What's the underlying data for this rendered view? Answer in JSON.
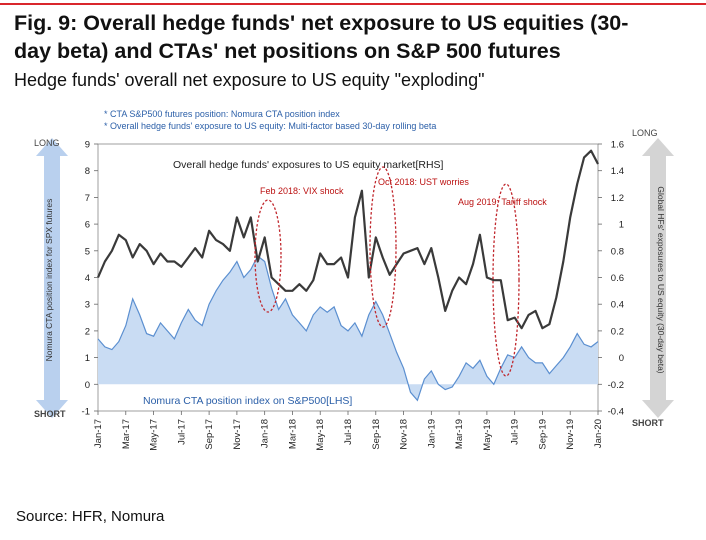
{
  "figure": {
    "title": "Fig. 9:  Overall hedge funds' net exposure to US equities (30-day beta) and CTAs' net positions on S&P 500 futures",
    "title_line1": "Fig. 9:  Overall hedge funds' net exposure to US equities (30-",
    "title_line2": "day beta) and CTAs' net positions on S&P 500 futures",
    "subtitle": "Hedge funds' overall net exposure to US equity \"exploding\"",
    "source": "Source: HFR, Nomura"
  },
  "colors": {
    "accent_red": "#d9262c",
    "area_fill": "#c9dcf3",
    "area_line": "#5b8fd0",
    "line": "#3a3a3a",
    "legend_text": "#2b5fa8",
    "annotation_red": "#c0262c"
  },
  "labels": {
    "legend1": "* CTA S&P500 futures position: Nomura CTA position index",
    "legend2": "* Overall hedge funds' exposure to US equity: Multi-factor based 30-day rolling beta",
    "line_label": "Overall hedge funds' exposures to US equity market[RHS]",
    "area_label": "Nomura CTA position index on S&P500[LHS]",
    "long_left": "LONG",
    "short_left": "SHORT",
    "long_right": "LONG",
    "short_right": "SHORT",
    "left_axis_title": "Nomura CTA position index for SPX futures",
    "right_axis_title": "Global HFs' exposures to US equity (30-day beta)",
    "ann1": "Feb 2018: VIX shock",
    "ann2": "Oct 2018: UST worries",
    "ann3": "Aug 2019: Tariff shock"
  },
  "chart_data": {
    "type": "area+line",
    "x_ticks": [
      "Jan-17",
      "Mar-17",
      "May-17",
      "Jul-17",
      "Sep-17",
      "Nov-17",
      "Jan-18",
      "Mar-18",
      "May-18",
      "Jul-18",
      "Sep-18",
      "Nov-18",
      "Jan-19",
      "Mar-19",
      "May-19",
      "Jul-19",
      "Sep-19",
      "Nov-19",
      "Jan-20"
    ],
    "left_axis": {
      "min": -1,
      "max": 9,
      "ticks": [
        "-1",
        "0",
        "1",
        "2",
        "3",
        "4",
        "5",
        "6",
        "7",
        "8",
        "9"
      ]
    },
    "right_axis": {
      "min": -0.4,
      "max": 1.6,
      "ticks": [
        "-0.4",
        "-0.2",
        "0",
        "0.2",
        "0.4",
        "0.6",
        "0.8",
        "1",
        "1.2",
        "1.4",
        "1.6"
      ]
    },
    "grid": false,
    "series": [
      {
        "name": "Nomura CTA position index on S&P500[LHS]",
        "axis": "left",
        "style": "area",
        "x": [
          0,
          0.5,
          1,
          1.5,
          2,
          2.5,
          3,
          3.5,
          4,
          4.5,
          5,
          5.5,
          6,
          6.5,
          7,
          7.5,
          8,
          8.5,
          9,
          9.5,
          10,
          10.5,
          11,
          11.5,
          12,
          12.5,
          13,
          13.5,
          14,
          14.5,
          15,
          15.5,
          16,
          16.5,
          17,
          17.5,
          18,
          18.5,
          19,
          19.5,
          20,
          20.5,
          21,
          21.5,
          22,
          22.5,
          23,
          23.5,
          24,
          24.5,
          25,
          25.5,
          26,
          26.5,
          27,
          27.5,
          28,
          28.5,
          29,
          29.5,
          30,
          30.5,
          31,
          31.5,
          32,
          32.5,
          33,
          33.5,
          34,
          34.5,
          35,
          35.5,
          36
        ],
        "values": [
          1.7,
          1.4,
          1.3,
          1.6,
          2.2,
          3.2,
          2.6,
          1.9,
          1.8,
          2.3,
          2.0,
          1.7,
          2.3,
          2.8,
          2.4,
          2.2,
          3.0,
          3.5,
          3.9,
          4.2,
          4.6,
          4.0,
          4.3,
          4.8,
          4.6,
          3.6,
          2.8,
          3.2,
          2.6,
          2.3,
          2.0,
          2.6,
          2.9,
          2.7,
          2.9,
          2.2,
          2.0,
          2.3,
          1.8,
          2.6,
          3.1,
          2.6,
          1.9,
          1.2,
          0.6,
          -0.3,
          -0.6,
          0.2,
          0.5,
          0.0,
          -0.2,
          -0.1,
          0.3,
          0.8,
          0.6,
          0.9,
          0.3,
          0.0,
          0.6,
          1.1,
          1.0,
          1.4,
          1.0,
          0.8,
          0.8,
          0.4,
          0.7,
          1.0,
          1.4,
          1.9,
          1.5,
          1.4,
          1.6
        ]
      },
      {
        "name": "Overall hedge funds' exposures to US equity market[RHS]",
        "axis": "right",
        "style": "line",
        "x": [
          0,
          0.5,
          1,
          1.5,
          2,
          2.5,
          3,
          3.5,
          4,
          4.5,
          5,
          5.5,
          6,
          6.5,
          7,
          7.5,
          8,
          8.5,
          9,
          9.5,
          10,
          10.5,
          11,
          11.5,
          12,
          12.5,
          13,
          13.5,
          14,
          14.5,
          15,
          15.5,
          16,
          16.5,
          17,
          17.5,
          18,
          18.5,
          19,
          19.5,
          20,
          20.5,
          21,
          21.5,
          22,
          22.5,
          23,
          23.5,
          24,
          24.5,
          25,
          25.5,
          26,
          26.5,
          27,
          27.5,
          28,
          28.5,
          29,
          29.5,
          30,
          30.5,
          31,
          31.5,
          32,
          32.5,
          33,
          33.5,
          34,
          34.5,
          35,
          35.5,
          36
        ],
        "values": [
          0.6,
          0.72,
          0.8,
          0.92,
          0.88,
          0.75,
          0.85,
          0.8,
          0.7,
          0.78,
          0.72,
          0.72,
          0.68,
          0.75,
          0.82,
          0.75,
          0.95,
          0.88,
          0.85,
          0.8,
          1.05,
          0.9,
          1.05,
          0.72,
          0.9,
          0.6,
          0.55,
          0.5,
          0.5,
          0.55,
          0.5,
          0.58,
          0.78,
          0.7,
          0.7,
          0.75,
          0.6,
          1.05,
          1.25,
          0.6,
          0.9,
          0.75,
          0.62,
          0.7,
          0.78,
          0.8,
          0.82,
          0.7,
          0.82,
          0.6,
          0.35,
          0.5,
          0.6,
          0.55,
          0.7,
          0.92,
          0.6,
          0.58,
          0.58,
          0.28,
          0.3,
          0.22,
          0.32,
          0.35,
          0.22,
          0.25,
          0.45,
          0.72,
          1.05,
          1.3,
          1.5,
          1.55,
          1.45
        ]
      }
    ]
  }
}
